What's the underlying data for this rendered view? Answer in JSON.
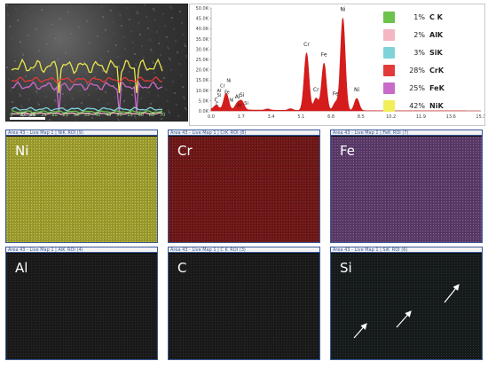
{
  "linescan": {
    "scale_bar": "200 µm",
    "x_ticks": [
      "0",
      "5",
      "10",
      "15",
      "20",
      "25",
      "30",
      "35",
      "40",
      "45",
      "50",
      "55",
      "60",
      "65",
      "70"
    ]
  },
  "spectrum": {
    "y_ticks": [
      "50.0K",
      "45.0K",
      "40.0K",
      "35.0K",
      "30.0K",
      "25.0K",
      "20.0K",
      "15.0K",
      "10.0K",
      "5.0K",
      "0.0K"
    ],
    "x_ticks": [
      "0.0",
      "1.7",
      "3.4",
      "5.1",
      "6.8",
      "8.5",
      "10.2",
      "11.9",
      "13.6",
      "15.3"
    ],
    "peak_labels": [
      {
        "label": "C",
        "energy": 0.28
      },
      {
        "label": "Al",
        "energy": 1.49
      },
      {
        "label": "Si",
        "energy": 1.74
      },
      {
        "label": "Cr",
        "energy": 5.41
      },
      {
        "label": "Cr",
        "energy": 5.95
      },
      {
        "label": "Fe",
        "energy": 6.4
      },
      {
        "label": "Fe",
        "energy": 7.06
      },
      {
        "label": "Ni",
        "energy": 7.47
      },
      {
        "label": "Ni",
        "energy": 8.26
      }
    ],
    "low_energy_labels": [
      "Ni",
      "Cr",
      "Al",
      "Si",
      "Fe",
      "C",
      "Ni",
      "Al",
      "Si"
    ],
    "line_color": "#d41c1c"
  },
  "legend": [
    {
      "pct": "1%",
      "name": "C K",
      "color": "#6cc24a"
    },
    {
      "pct": "2%",
      "name": "AlK",
      "color": "#f4b6c2"
    },
    {
      "pct": "3%",
      "name": "SiK",
      "color": "#7fd3d8"
    },
    {
      "pct": "28%",
      "name": "CrK",
      "color": "#e23a3a"
    },
    {
      "pct": "25%",
      "name": "FeK",
      "color": "#c86ac8"
    },
    {
      "pct": "42%",
      "name": "NiK",
      "color": "#f0ee5a"
    }
  ],
  "maps": [
    {
      "title": "Area 43 - Live Map 1 | NiK_ROI (9)",
      "label": "Ni"
    },
    {
      "title": "Area 43 - Live Map 1 | CrK_ROI (8)",
      "label": "Cr"
    },
    {
      "title": "Area 43 - Live Map 1 | FeK_ROI (7)",
      "label": "Fe"
    },
    {
      "title": "Area 43 - Live Map 1 | AlK_ROI (4)",
      "label": "Al"
    },
    {
      "title": "Area 43 - Live Map 1 | C K_ROI (3)",
      "label": "C"
    },
    {
      "title": "Area 43 - Live Map 1 | SiK_ROI (6)",
      "label": "Si"
    }
  ]
}
